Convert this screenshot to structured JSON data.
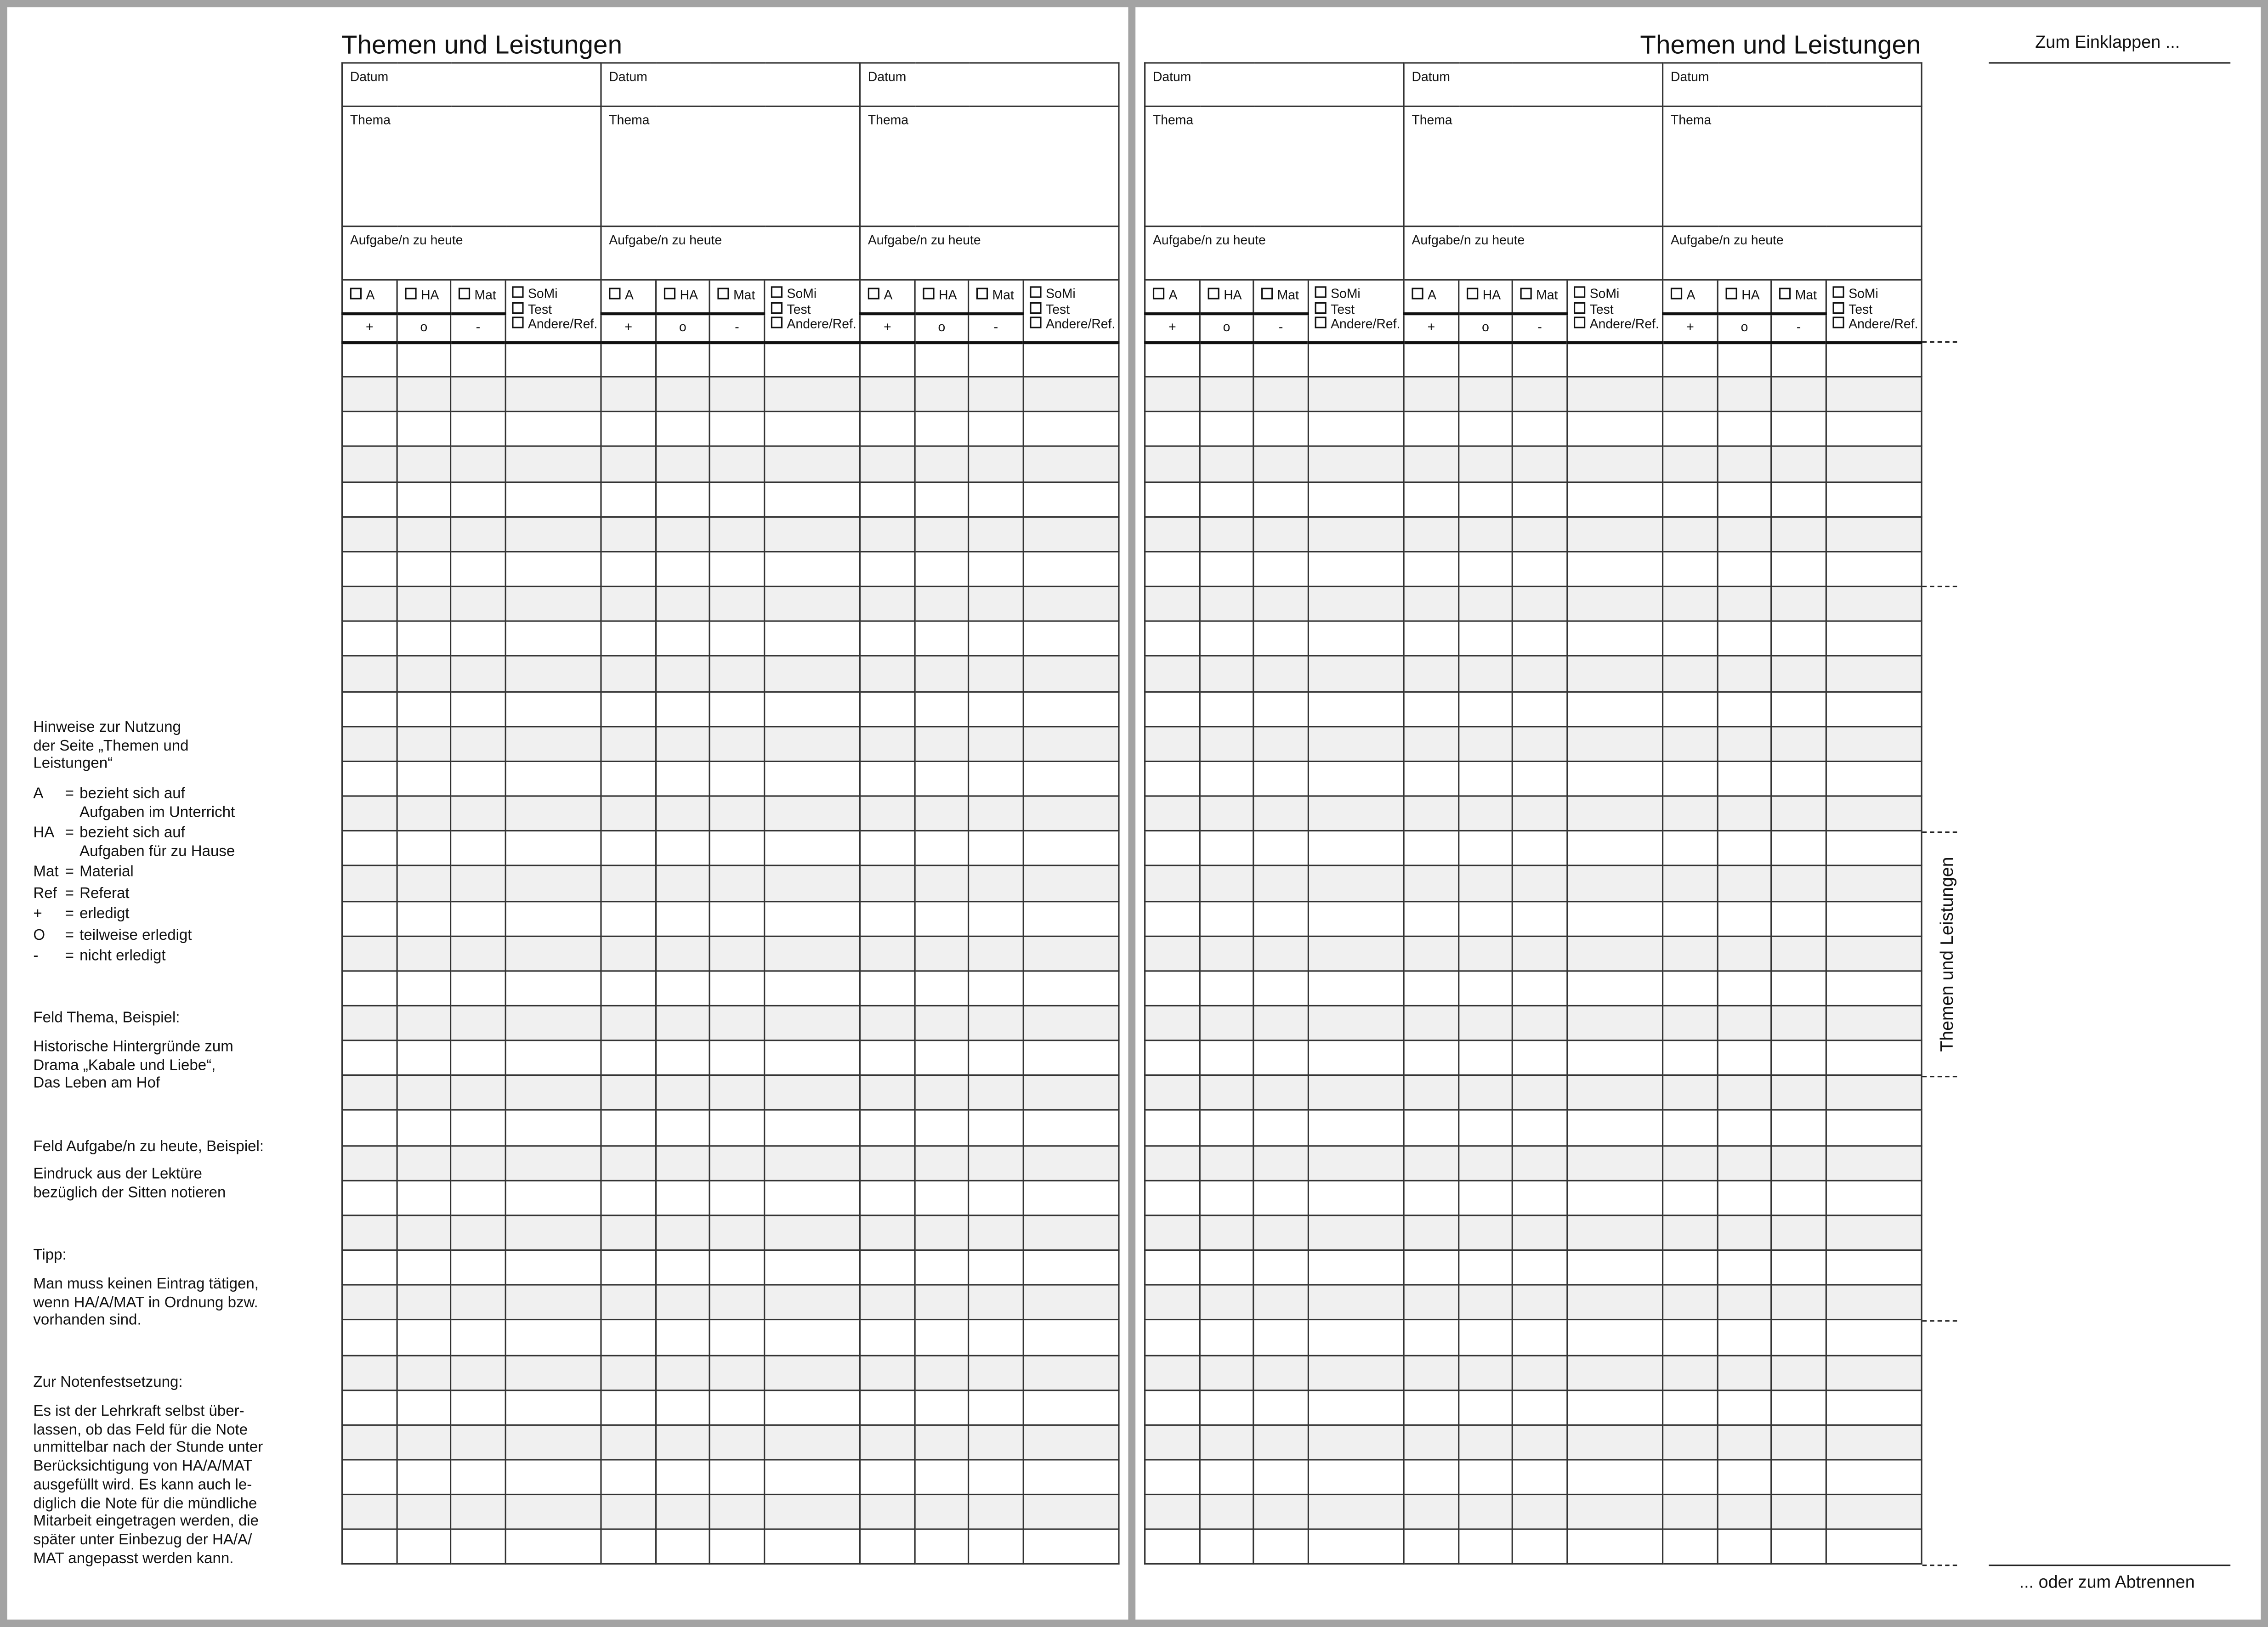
{
  "title": "Themen und Leistungen",
  "block_labels": {
    "datum": "Datum",
    "thema": "Thema",
    "aufgabe": "Aufgabe/n zu heute",
    "checks": [
      "A",
      "HA",
      "Mat"
    ],
    "signs": [
      "+",
      "o",
      "-"
    ],
    "extra_checks": [
      "SoMi",
      "Test",
      "Andere/Ref."
    ]
  },
  "side": {
    "top_label": "Zum Einklappen ...",
    "bottom_label": "... oder zum Abtrennen",
    "vertical_label": "Themen und Leistungen"
  },
  "notes": {
    "heading": [
      "Hinweise zur Nutzung",
      "der Seite „Themen und",
      "Leistungen“"
    ],
    "legend": [
      {
        "key": "A",
        "lines": [
          "bezieht sich auf",
          "Aufgaben im Unterricht"
        ]
      },
      {
        "key": "HA",
        "lines": [
          "bezieht sich auf",
          "Aufgaben für zu Hause"
        ]
      },
      {
        "key": "Mat",
        "lines": [
          "Material"
        ]
      },
      {
        "key": "Ref",
        "lines": [
          "Referat"
        ]
      },
      {
        "key": "+",
        "lines": [
          "erledigt"
        ]
      },
      {
        "key": "O",
        "lines": [
          "teilweise erledigt"
        ]
      },
      {
        "key": "-",
        "lines": [
          "nicht erledigt"
        ]
      }
    ],
    "equals": "=",
    "thema_heading": "Feld Thema, Beispiel:",
    "thema_example": [
      "Historische Hintergründe zum",
      "Drama „Kabale und Liebe“,",
      "Das Leben am Hof"
    ],
    "aufgabe_heading": "Feld Aufgabe/n zu heute, Beispiel:",
    "aufgabe_example": [
      "Eindruck aus der Lektüre",
      "bezüglich der Sitten notieren"
    ],
    "tipp_heading": "Tipp:",
    "tipp_text": [
      "Man muss keinen Eintrag tätigen,",
      "wenn HA/A/MAT in Ordnung bzw.",
      "vorhanden sind."
    ],
    "noten_heading": "Zur Notenfestsetzung:",
    "noten_text": [
      "Es ist der Lehrkraft selbst über-",
      "lassen, ob das Feld für die Note",
      "unmittelbar nach der Stunde unter",
      "Berücksichtigung von HA/A/MAT",
      "ausgefüllt wird. Es kann auch le-",
      "diglich die Note für die mündliche",
      "Mitarbeit eingetragen werden, die",
      "später unter Einbezug der HA/A/",
      "MAT angepasst werden kann."
    ]
  },
  "colors": {
    "row_alt": "#f0f0f0",
    "background": "#a3a3a3",
    "page": "#ffffff"
  }
}
